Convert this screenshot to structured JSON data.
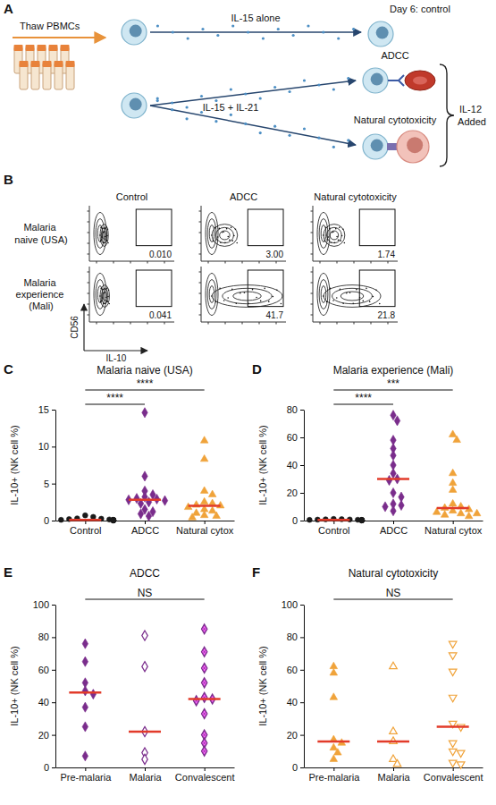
{
  "diagram": {
    "panel": "A",
    "steps": {
      "thaw": "Thaw PBMCs",
      "il15": "IL-15 alone",
      "control": "Day 6: control",
      "adcc": "ADCC",
      "il15_il21": "IL-15 + IL-21",
      "natural": "Natural cytotoxicity",
      "il12": "IL-12 Added"
    }
  },
  "flow": {
    "panel": "B",
    "columns": [
      "Control",
      "ADCC",
      "Natural cytotoxicity"
    ],
    "y_label": "CD56",
    "x_label": "IL-10",
    "rows": [
      {
        "label": "Malaria naive (USA)",
        "gates": [
          {
            "value": 0.01,
            "label": "0.010"
          },
          {
            "value": 3,
            "label": "3.00"
          },
          1.74
        ]
      },
      {
        "label": "Malaria experience (Mali)",
        "gates": [
          0.041,
          41.7,
          21.8
        ]
      }
    ]
  },
  "chart_data": [
    {
      "type": "strip",
      "panel": "C",
      "title": "Malaria naive (USA)",
      "y_label": "IL-10+ (NK cell %)",
      "categories": [
        "Control",
        "ADCC",
        "Natural cytox"
      ],
      "ylim": [
        0,
        15
      ],
      "yticks": [
        0,
        5,
        10,
        15
      ],
      "groups": [
        {
          "color": "#1a1a1a",
          "marker": "circle",
          "values": [
            0.7,
            0.5,
            0.3,
            0.25,
            0.2,
            0.15,
            0.1,
            0.1,
            0.1,
            0.05,
            0.05,
            0.05,
            0.02,
            0.02,
            0.01
          ],
          "median": 0.1
        },
        {
          "color": "#7a2d8c",
          "marker": "diamond",
          "values": [
            14.6,
            6.0,
            4.0,
            3.5,
            3.2,
            3.0,
            2.9,
            2.8,
            2.7,
            2.5,
            2.3,
            1.5,
            1.2,
            0.9,
            0.6
          ],
          "median": 2.8
        },
        {
          "color": "#f0a33a",
          "marker": "triangle",
          "values": [
            10.8,
            8.3,
            4.0,
            3.5,
            2.5,
            2.3,
            2.1,
            2.0,
            1.8,
            1.5,
            1.3,
            1.0,
            0.7,
            0.6,
            0.4
          ],
          "median": 2.0
        }
      ],
      "annotations": [
        {
          "text": "****",
          "from": 0,
          "to": 1
        },
        {
          "text": "****",
          "from": 0,
          "to": 2
        }
      ]
    },
    {
      "type": "strip",
      "panel": "D",
      "title": "Malaria experience (Mali)",
      "y_label": "IL-10+ (NK cell %)",
      "categories": [
        "Control",
        "ADCC",
        "Natural cytox"
      ],
      "ylim": [
        0,
        80
      ],
      "yticks": [
        0,
        20,
        40,
        60,
        80
      ],
      "groups": [
        {
          "color": "#1a1a1a",
          "marker": "circle",
          "values": [
            1.2,
            1.0,
            0.9,
            0.8,
            0.7,
            0.6,
            0.5,
            0.5,
            0.4,
            0.3,
            0.3,
            0.2,
            0.2,
            0.1,
            0.1
          ],
          "median": 0.5
        },
        {
          "color": "#7a2d8c",
          "marker": "diamond",
          "values": [
            76,
            72,
            58,
            52,
            47,
            40,
            34,
            30,
            29,
            20,
            17,
            12,
            11,
            10,
            7
          ],
          "median": 30
        },
        {
          "color": "#f0a33a",
          "marker": "triangle",
          "values": [
            62,
            58,
            34,
            27,
            22,
            12,
            10,
            9,
            8,
            7,
            6,
            5,
            5,
            4,
            3
          ],
          "median": 9
        }
      ],
      "annotations": [
        {
          "text": "****",
          "from": 0,
          "to": 1
        },
        {
          "text": "***",
          "from": 0,
          "to": 2
        }
      ]
    },
    {
      "type": "strip",
      "panel": "E",
      "title": "ADCC",
      "y_label": "IL-10+ (NK cell %)",
      "categories": [
        "Pre-malaria",
        "Malaria",
        "Convalescent"
      ],
      "ylim": [
        0,
        100
      ],
      "yticks": [
        0,
        20,
        40,
        60,
        80,
        100
      ],
      "groups": [
        {
          "color": "#7a2d8c",
          "marker": "diamond",
          "values": [
            76,
            65,
            52,
            47,
            45,
            37,
            25,
            7
          ],
          "median": 46
        },
        {
          "color": "#7a2d8c",
          "marker": "diamond-open",
          "values": [
            81,
            62,
            22,
            9,
            5
          ],
          "median": 22
        },
        {
          "color": "#7a2d8c",
          "marker": "diamond-hatched",
          "values": [
            85,
            71,
            61,
            52,
            43,
            42,
            41,
            33,
            20,
            15,
            10
          ],
          "median": 42
        }
      ],
      "annotations": [
        {
          "text": "NS",
          "from": 0,
          "to": 2
        }
      ]
    },
    {
      "type": "strip",
      "panel": "F",
      "title": "Natural cytotoxicity",
      "y_label": "IL-10+ (NK cell %)",
      "categories": [
        "Pre-malaria",
        "Malaria",
        "Convalescent"
      ],
      "ylim": [
        0,
        100
      ],
      "yticks": [
        0,
        20,
        40,
        60,
        80,
        100
      ],
      "groups": [
        {
          "color": "#f0a33a",
          "marker": "triangle",
          "values": [
            62,
            58,
            43,
            17,
            15,
            12,
            9,
            5
          ],
          "median": 16
        },
        {
          "color": "#f0a33a",
          "marker": "triangle-open",
          "values": [
            62,
            22,
            16,
            5,
            2
          ],
          "median": 16
        },
        {
          "color": "#f0a33a",
          "marker": "triangle-down-open",
          "values": [
            76,
            69,
            59,
            43,
            27,
            25,
            15,
            10,
            9,
            3,
            2
          ],
          "median": 25
        }
      ],
      "annotations": [
        {
          "text": "NS",
          "from": 0,
          "to": 2
        }
      ]
    }
  ]
}
